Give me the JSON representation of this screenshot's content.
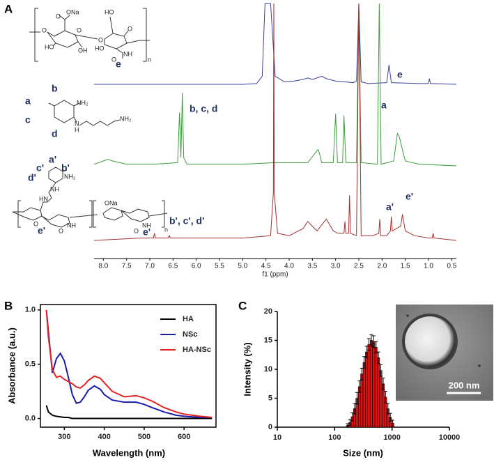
{
  "panel_labels": [
    "A",
    "B",
    "C"
  ],
  "structures": {
    "ha": {
      "texts": [
        "O",
        "O",
        "ONa",
        "O",
        "HO",
        "OH",
        "O",
        "HO",
        "O",
        "HO",
        "NH",
        "O",
        "n"
      ],
      "labels": [
        "e"
      ]
    },
    "nsc": {
      "texts": [
        "NH₂",
        "N",
        "H",
        "NH₂"
      ],
      "labels": [
        "a",
        "b",
        "c",
        "d"
      ]
    },
    "ha_nsc": {
      "texts": [
        "NH₂",
        "NH",
        "HN",
        "O",
        "NH",
        "O",
        "ONa",
        "NH",
        "O",
        "n"
      ],
      "labels": [
        "a'",
        "c'",
        "b'",
        "d'",
        "e'",
        "e'"
      ]
    }
  },
  "chart_data": [
    {
      "type": "line",
      "xlabel": "f1 (ppm)",
      "xlim": [
        8.2,
        0.4
      ],
      "xticks": [
        {
          "value": 8,
          "label": "8.0"
        },
        7.5,
        {
          "value": 7,
          "label": "7.0"
        },
        6.5,
        {
          "value": 6,
          "label": "6.0"
        },
        5.5,
        {
          "value": 5,
          "label": "5.0"
        },
        4.5,
        {
          "value": 4,
          "label": "4.0"
        },
        3.5,
        {
          "value": 3,
          "label": "3.0"
        },
        2.5,
        {
          "value": 2,
          "label": "2.0"
        },
        1.5,
        {
          "value": 1,
          "label": "1.0"
        },
        0.5
      ],
      "annotations": [
        "e",
        "b, c, d",
        "a",
        "a'",
        "e'",
        "b', c', d'"
      ],
      "series": [
        {
          "color": "#3b3f9e",
          "x": [
            8.2,
            5.0,
            4.7,
            4.58,
            4.52,
            4.4,
            4.3,
            4.1,
            3.9,
            3.7,
            3.6,
            3.5,
            3.4,
            3.3,
            3.2,
            3.0,
            2.8,
            2.62,
            2.55,
            2.5,
            2.45,
            2.3,
            1.9,
            1.85,
            1.8,
            1.2,
            1.0,
            0.98,
            0.96,
            0.4
          ],
          "values": [
            0,
            0,
            0.01,
            0.1,
            1,
            1,
            0.1,
            0.03,
            0.04,
            0.06,
            0.08,
            0.06,
            0.08,
            0.1,
            0.07,
            0.04,
            0.03,
            0.02,
            0.04,
            1,
            0.03,
            0.01,
            0.02,
            0.24,
            0.02,
            0.01,
            0.01,
            0.07,
            0.01,
            0
          ]
        },
        {
          "color": "#3a9e3a",
          "x": [
            8.2,
            8.0,
            7.9,
            7.8,
            7.5,
            6.9,
            6.4,
            6.36,
            6.33,
            6.3,
            6.27,
            6.2,
            5.0,
            4.3,
            3.6,
            3.38,
            3.35,
            3.3,
            3.05,
            3.0,
            2.96,
            2.85,
            2.82,
            2.78,
            2.55,
            2.5,
            2.45,
            2.1,
            2.06,
            2.02,
            1.75,
            1.67,
            1.63,
            1.58,
            1.5,
            1.2,
            0.4
          ],
          "values": [
            0.01,
            0.03,
            0.04,
            0.03,
            0.01,
            0.01,
            0.02,
            0.33,
            0.05,
            0.45,
            0.05,
            0.01,
            0.01,
            0.02,
            0.02,
            0.1,
            0.08,
            0.02,
            0.02,
            0.32,
            0.02,
            0.02,
            0.31,
            0.02,
            0.02,
            1,
            0.02,
            0.01,
            1,
            0.01,
            0.03,
            0.2,
            0.18,
            0.12,
            0.03,
            0.01,
            0
          ]
        },
        {
          "color": "#a03030",
          "x": [
            8.2,
            7.2,
            6.92,
            6.9,
            6.88,
            6.6,
            6.58,
            6.56,
            5.0,
            4.4,
            4.34,
            4.33,
            4.32,
            4.25,
            4.0,
            3.7,
            3.6,
            3.5,
            3.4,
            3.2,
            3.05,
            2.95,
            2.82,
            2.8,
            2.78,
            2.72,
            2.7,
            2.68,
            2.55,
            2.5,
            2.45,
            2.2,
            2.07,
            2.05,
            2.03,
            1.9,
            1.82,
            1.8,
            1.78,
            1.6,
            1.56,
            1.5,
            1.3,
            1.0,
            0.92,
            0.9,
            0.88,
            0.4
          ],
          "values": [
            0,
            0.01,
            0.01,
            0.03,
            0.01,
            0.01,
            0.02,
            0.01,
            0.01,
            0.02,
            0.2,
            1,
            0.2,
            0.03,
            0.02,
            0.05,
            0.08,
            0.06,
            0.04,
            0.09,
            0.04,
            0.03,
            0.03,
            0.08,
            0.03,
            0.03,
            0.19,
            0.03,
            0.02,
            1,
            0.02,
            0.02,
            0.03,
            0.09,
            0.02,
            0.02,
            0.04,
            0.1,
            0.04,
            0.06,
            0.11,
            0.04,
            0.02,
            0.01,
            0.01,
            0.03,
            0.01,
            0
          ]
        }
      ]
    },
    {
      "type": "line",
      "xlabel": "Wavelength (nm)",
      "ylabel": "Absorbance (a.u.)",
      "xlim": [
        240,
        680
      ],
      "xticks": [
        300,
        400,
        500,
        600
      ],
      "ylim": [
        -0.08,
        1.05
      ],
      "yticks": [
        {
          "value": 0,
          "label": "0.0"
        },
        {
          "value": 0.5,
          "label": "0.5"
        },
        {
          "value": 1,
          "label": "1.0"
        }
      ],
      "legend": "upper right",
      "x": [
        255,
        260,
        270,
        280,
        290,
        300,
        310,
        320,
        330,
        340,
        350,
        360,
        375,
        390,
        400,
        420,
        450,
        480,
        500,
        520,
        550,
        580,
        600,
        640,
        670
      ],
      "series": [
        {
          "name": "HA",
          "color": "#000000",
          "values": [
            0.12,
            0.06,
            0.03,
            0.02,
            0.015,
            0.01,
            0.01,
            0,
            0,
            0,
            0,
            0,
            0,
            0,
            0,
            0,
            0,
            0,
            0,
            0,
            0,
            0,
            0,
            0,
            0
          ]
        },
        {
          "name": "NSc",
          "color": "#1a1aa8",
          "values": [
            1.0,
            0.8,
            0.42,
            0.55,
            0.6,
            0.53,
            0.38,
            0.22,
            0.14,
            0.15,
            0.2,
            0.26,
            0.3,
            0.27,
            0.22,
            0.17,
            0.15,
            0.15,
            0.13,
            0.1,
            0.06,
            0.03,
            0.02,
            0.01,
            0.01
          ]
        },
        {
          "name": "HA-NSc",
          "color": "#e82020",
          "values": [
            1.0,
            0.75,
            0.45,
            0.38,
            0.39,
            0.36,
            0.34,
            0.32,
            0.29,
            0.28,
            0.31,
            0.35,
            0.39,
            0.37,
            0.33,
            0.25,
            0.2,
            0.21,
            0.19,
            0.16,
            0.1,
            0.06,
            0.04,
            0.02,
            0.01
          ]
        }
      ]
    },
    {
      "type": "histogram",
      "xlabel": "Size (nm)",
      "ylabel": "Intensity (%)",
      "xscale": "log",
      "xlim": [
        10,
        10000
      ],
      "xticks": [
        10,
        100,
        1000,
        10000
      ],
      "ylim": [
        0,
        20
      ],
      "yticks": [
        0,
        5,
        10,
        15,
        20
      ],
      "color": "#dd1111",
      "bins": [
        160,
        176,
        193.6,
        213,
        234,
        258,
        283,
        312,
        343,
        377,
        415,
        456,
        502,
        552,
        607,
        668,
        735,
        808,
        889,
        978,
        1076
      ],
      "values": [
        0.3,
        0.8,
        1.8,
        3.2,
        5,
        7,
        9.2,
        11.2,
        13,
        14.3,
        15,
        14.8,
        13.8,
        12,
        9.8,
        7.5,
        5.2,
        3.2,
        1.7,
        0.7
      ],
      "errors": [
        0.3,
        0.5,
        0.7,
        0.9,
        1,
        1,
        1,
        1,
        1,
        1,
        1,
        1,
        1,
        1,
        1,
        1,
        1,
        0.9,
        0.7,
        0.5
      ],
      "inset_scale": "200 nm"
    }
  ]
}
